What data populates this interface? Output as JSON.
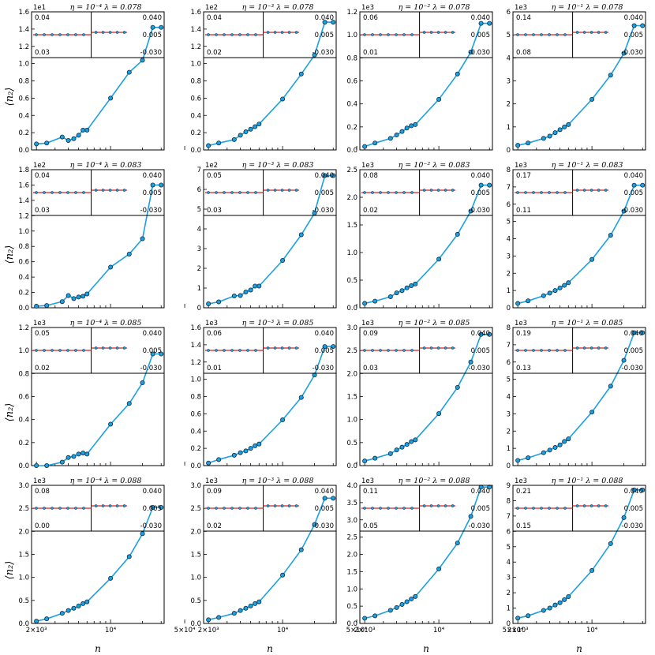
{
  "figure": {
    "ylabel": "⟨n₂⟩",
    "xlabel": "n",
    "x_tick_labels": [
      "2×10³",
      "10⁴",
      "5×10⁴"
    ],
    "x_tick_values": [
      2000,
      10000,
      50000
    ],
    "colors": {
      "series": "#1ba1e2",
      "marker_edge": "#0d2a40",
      "inset_line": "#d62020"
    }
  },
  "chart_data": [
    {
      "type": "line",
      "title": "η = 10⁻⁴ λ = 0.078",
      "multiplier": "1e1",
      "ylim": [
        0,
        1.6
      ],
      "yticks": [
        0.0,
        0.2,
        0.4,
        0.6,
        0.8,
        1.0,
        1.2,
        1.4,
        1.6
      ],
      "ytick_labels": [
        "0.0",
        "0.2",
        "0.4",
        "0.6",
        "0.8",
        "1.0",
        "1.2",
        "1.4",
        "1.6"
      ],
      "x": [
        2000,
        2500,
        3500,
        4000,
        4500,
        5000,
        5500,
        6000,
        10000,
        15000,
        20000,
        25000,
        30000
      ],
      "y": [
        0.07,
        0.08,
        0.15,
        0.11,
        0.13,
        0.17,
        0.23,
        0.23,
        0.6,
        0.9,
        1.04,
        1.42,
        1.42
      ],
      "inset": {
        "left_top": "0.04",
        "left_bottom": "0.03",
        "right_top": "0.040",
        "right_mid": "0.005",
        "right_bottom": "-0.030"
      }
    },
    {
      "type": "line",
      "title": "η = 10⁻³ λ = 0.078",
      "multiplier": "1e2",
      "ylim": [
        0,
        1.6
      ],
      "yticks": [
        0.0,
        0.2,
        0.4,
        0.6,
        0.8,
        1.0,
        1.2,
        1.4,
        1.6
      ],
      "ytick_labels": [
        "0.0",
        "0.2",
        "0.4",
        "0.6",
        "0.8",
        "1.0",
        "1.2",
        "1.4",
        "1.6"
      ],
      "x": [
        2000,
        2500,
        3500,
        4000,
        4500,
        5000,
        5500,
        6000,
        10000,
        15000,
        20000,
        25000,
        30000
      ],
      "y": [
        0.05,
        0.08,
        0.12,
        0.17,
        0.21,
        0.24,
        0.27,
        0.3,
        0.59,
        0.88,
        1.1,
        1.48,
        1.48
      ],
      "inset": {
        "left_top": "0.04",
        "left_bottom": "0.02",
        "right_top": "0.040",
        "right_mid": "0.005",
        "right_bottom": "-0.030"
      }
    },
    {
      "type": "line",
      "title": "η = 10⁻² λ = 0.078",
      "multiplier": "1e3",
      "ylim": [
        0,
        1.2
      ],
      "yticks": [
        0.0,
        0.2,
        0.4,
        0.6,
        0.8,
        1.0,
        1.2
      ],
      "ytick_labels": [
        "0.0",
        "0.2",
        "0.4",
        "0.6",
        "0.8",
        "1.0",
        "1.2"
      ],
      "x": [
        2000,
        2500,
        3500,
        4000,
        4500,
        5000,
        5500,
        6000,
        10000,
        15000,
        20000,
        25000,
        30000
      ],
      "y": [
        0.03,
        0.06,
        0.1,
        0.13,
        0.16,
        0.19,
        0.21,
        0.22,
        0.44,
        0.66,
        0.85,
        1.1,
        1.1
      ],
      "inset": {
        "left_top": "0.06",
        "left_bottom": "0.01",
        "right_top": "0.040",
        "right_mid": "0.005",
        "right_bottom": "-0.030"
      }
    },
    {
      "type": "line",
      "title": "η = 10⁻¹ λ = 0.078",
      "multiplier": "1e3",
      "ylim": [
        0,
        6
      ],
      "yticks": [
        0,
        1,
        2,
        3,
        4,
        5,
        6
      ],
      "ytick_labels": [
        "0",
        "1",
        "2",
        "3",
        "4",
        "5",
        "6"
      ],
      "x": [
        2000,
        2500,
        3500,
        4000,
        4500,
        5000,
        5500,
        6000,
        10000,
        15000,
        20000,
        25000,
        30000
      ],
      "y": [
        0.2,
        0.3,
        0.5,
        0.6,
        0.75,
        0.88,
        1.0,
        1.1,
        2.2,
        3.25,
        4.2,
        5.4,
        5.4
      ],
      "inset": {
        "left_top": "0.14",
        "left_bottom": "0.08",
        "right_top": "0.040",
        "right_mid": "0.005",
        "right_bottom": "-0.030"
      }
    },
    {
      "type": "line",
      "title": "η = 10⁻⁴ λ = 0.083",
      "multiplier": "1e2",
      "ylim": [
        0,
        1.8
      ],
      "yticks": [
        0.0,
        0.2,
        0.4,
        0.6,
        0.8,
        1.0,
        1.2,
        1.4,
        1.6,
        1.8
      ],
      "ytick_labels": [
        "0.0",
        "0.2",
        "0.4",
        "0.6",
        "0.8",
        "1.0",
        "1.2",
        "1.4",
        "1.6",
        "1.8"
      ],
      "x": [
        2000,
        2500,
        3500,
        4000,
        4500,
        5000,
        5500,
        6000,
        10000,
        15000,
        20000,
        25000,
        30000
      ],
      "y": [
        0.02,
        0.03,
        0.08,
        0.16,
        0.12,
        0.14,
        0.15,
        0.18,
        0.53,
        0.7,
        0.9,
        1.6,
        1.6
      ],
      "inset": {
        "left_top": "0.04",
        "left_bottom": "0.03",
        "right_top": "0.040",
        "right_mid": "0.005",
        "right_bottom": "-0.030"
      }
    },
    {
      "type": "line",
      "title": "η = 10⁻³ λ = 0.083",
      "multiplier": "1e2",
      "ylim": [
        0,
        7
      ],
      "yticks": [
        0,
        1,
        2,
        3,
        4,
        5,
        6,
        7
      ],
      "ytick_labels": [
        "0",
        "1",
        "2",
        "3",
        "4",
        "5",
        "6",
        "7"
      ],
      "x": [
        2000,
        2500,
        3500,
        4000,
        4500,
        5000,
        5500,
        6000,
        10000,
        15000,
        20000,
        25000,
        30000
      ],
      "y": [
        0.2,
        0.3,
        0.6,
        0.62,
        0.8,
        0.9,
        1.1,
        1.1,
        2.4,
        3.7,
        4.8,
        6.7,
        6.7
      ],
      "inset": {
        "left_top": "0.05",
        "left_bottom": "0.03",
        "right_top": "0.040",
        "right_mid": "0.005",
        "right_bottom": "-0.030"
      }
    },
    {
      "type": "line",
      "title": "η = 10⁻² λ = 0.083",
      "multiplier": "1e3",
      "ylim": [
        0,
        2.5
      ],
      "yticks": [
        0.0,
        0.5,
        1.0,
        1.5,
        2.0,
        2.5
      ],
      "ytick_labels": [
        "0.0",
        "0.5",
        "1.0",
        "1.5",
        "2.0",
        "2.5"
      ],
      "x": [
        2000,
        2500,
        3500,
        4000,
        4500,
        5000,
        5500,
        6000,
        10000,
        15000,
        20000,
        25000,
        30000
      ],
      "y": [
        0.08,
        0.12,
        0.2,
        0.27,
        0.31,
        0.36,
        0.4,
        0.43,
        0.88,
        1.33,
        1.75,
        2.22,
        2.22
      ],
      "inset": {
        "left_top": "0.08",
        "left_bottom": "0.02",
        "right_top": "0.040",
        "right_mid": "0.005",
        "right_bottom": "-0.030"
      }
    },
    {
      "type": "line",
      "title": "η = 10⁻¹ λ = 0.083",
      "multiplier": "1e3",
      "ylim": [
        0,
        8
      ],
      "yticks": [
        0,
        1,
        2,
        3,
        4,
        5,
        6,
        7,
        8
      ],
      "ytick_labels": [
        "0",
        "1",
        "2",
        "3",
        "4",
        "5",
        "6",
        "7",
        "8"
      ],
      "x": [
        2000,
        2500,
        3500,
        4000,
        4500,
        5000,
        5500,
        6000,
        10000,
        15000,
        20000,
        25000,
        30000
      ],
      "y": [
        0.25,
        0.4,
        0.7,
        0.85,
        1.0,
        1.15,
        1.3,
        1.45,
        2.8,
        4.2,
        5.6,
        7.1,
        7.1
      ],
      "inset": {
        "left_top": "0.17",
        "left_bottom": "0.11",
        "right_top": "0.040",
        "right_mid": "0.005",
        "right_bottom": "-0.030"
      }
    },
    {
      "type": "line",
      "title": "η = 10⁻⁴ λ = 0.085",
      "multiplier": "1e3",
      "ylim": [
        0,
        1.2
      ],
      "yticks": [
        0.0,
        0.2,
        0.4,
        0.6,
        0.8,
        1.0,
        1.2
      ],
      "ytick_labels": [
        "0.0",
        "0.2",
        "0.4",
        "0.6",
        "0.8",
        "1.0",
        "1.2"
      ],
      "x": [
        2000,
        2500,
        3500,
        4000,
        4500,
        5000,
        5500,
        6000,
        10000,
        15000,
        20000,
        25000,
        30000
      ],
      "y": [
        0.0,
        0.0,
        0.03,
        0.07,
        0.08,
        0.1,
        0.11,
        0.1,
        0.36,
        0.54,
        0.72,
        0.97,
        0.97
      ],
      "inset": {
        "left_top": "0.05",
        "left_bottom": "0.02",
        "right_top": "0.040",
        "right_mid": "0.005",
        "right_bottom": "-0.030"
      }
    },
    {
      "type": "line",
      "title": "η = 10⁻³ λ = 0.085",
      "multiplier": "1e3",
      "ylim": [
        0,
        1.6
      ],
      "yticks": [
        0.0,
        0.2,
        0.4,
        0.6,
        0.8,
        1.0,
        1.2,
        1.4,
        1.6
      ],
      "ytick_labels": [
        "0.0",
        "0.2",
        "0.4",
        "0.6",
        "0.8",
        "1.0",
        "1.2",
        "1.4",
        "1.6"
      ],
      "x": [
        2000,
        2500,
        3500,
        4000,
        4500,
        5000,
        5500,
        6000,
        10000,
        15000,
        20000,
        25000,
        30000
      ],
      "y": [
        0.03,
        0.07,
        0.12,
        0.15,
        0.17,
        0.2,
        0.23,
        0.25,
        0.53,
        0.79,
        1.05,
        1.38,
        1.38
      ],
      "inset": {
        "left_top": "0.06",
        "left_bottom": "0.01",
        "right_top": "0.040",
        "right_mid": "0.005",
        "right_bottom": "-0.030"
      }
    },
    {
      "type": "line",
      "title": "η = 10⁻² λ = 0.085",
      "multiplier": "1e3",
      "ylim": [
        0,
        3.0
      ],
      "yticks": [
        0.0,
        0.5,
        1.0,
        1.5,
        2.0,
        2.5,
        3.0
      ],
      "ytick_labels": [
        "0.0",
        "0.5",
        "1.0",
        "1.5",
        "2.0",
        "2.5",
        "3.0"
      ],
      "x": [
        2000,
        2500,
        3500,
        4000,
        4500,
        5000,
        5500,
        6000,
        10000,
        15000,
        20000,
        25000,
        30000
      ],
      "y": [
        0.1,
        0.16,
        0.26,
        0.34,
        0.4,
        0.46,
        0.52,
        0.56,
        1.13,
        1.7,
        2.25,
        2.85,
        2.85
      ],
      "inset": {
        "left_top": "0.09",
        "left_bottom": "0.03",
        "right_top": "0.040",
        "right_mid": "0.005",
        "right_bottom": "-0.030"
      }
    },
    {
      "type": "line",
      "title": "η = 10⁻¹ λ = 0.085",
      "multiplier": "1e3",
      "ylim": [
        0,
        8
      ],
      "yticks": [
        0,
        1,
        2,
        3,
        4,
        5,
        6,
        7,
        8
      ],
      "ytick_labels": [
        "0",
        "1",
        "2",
        "3",
        "4",
        "5",
        "6",
        "7",
        "8"
      ],
      "x": [
        2000,
        2500,
        3500,
        4000,
        4500,
        5000,
        5500,
        6000,
        10000,
        15000,
        20000,
        25000,
        30000
      ],
      "y": [
        0.3,
        0.45,
        0.75,
        0.9,
        1.05,
        1.2,
        1.4,
        1.55,
        3.1,
        4.6,
        6.1,
        7.7,
        7.7
      ],
      "inset": {
        "left_top": "0.19",
        "left_bottom": "0.13",
        "right_top": "0.040",
        "right_mid": "0.005",
        "right_bottom": "-0.030"
      }
    },
    {
      "type": "line",
      "title": "η = 10⁻⁴ λ = 0.088",
      "multiplier": "1e3",
      "ylim": [
        0,
        3.0
      ],
      "yticks": [
        0.0,
        0.5,
        1.0,
        1.5,
        2.0,
        2.5,
        3.0
      ],
      "ytick_labels": [
        "0.0",
        "0.5",
        "1.0",
        "1.5",
        "2.0",
        "2.5",
        "3.0"
      ],
      "x": [
        2000,
        2500,
        3500,
        4000,
        4500,
        5000,
        5500,
        6000,
        10000,
        15000,
        20000,
        25000,
        30000
      ],
      "y": [
        0.05,
        0.1,
        0.22,
        0.28,
        0.33,
        0.38,
        0.43,
        0.47,
        0.98,
        1.45,
        1.95,
        2.52,
        2.52
      ],
      "inset": {
        "left_top": "0.08",
        "left_bottom": "0.00",
        "right_top": "0.040",
        "right_mid": "0.005",
        "right_bottom": "-0.030"
      }
    },
    {
      "type": "line",
      "title": "η = 10⁻³ λ = 0.088",
      "multiplier": "1e3",
      "ylim": [
        0,
        3.0
      ],
      "yticks": [
        0.0,
        0.5,
        1.0,
        1.5,
        2.0,
        2.5,
        3.0
      ],
      "ytick_labels": [
        "0.0",
        "0.5",
        "1.0",
        "1.5",
        "2.0",
        "2.5",
        "3.0"
      ],
      "x": [
        2000,
        2500,
        3500,
        4000,
        4500,
        5000,
        5500,
        6000,
        10000,
        15000,
        20000,
        25000,
        30000
      ],
      "y": [
        0.08,
        0.13,
        0.22,
        0.28,
        0.33,
        0.38,
        0.43,
        0.47,
        1.05,
        1.6,
        2.15,
        2.72,
        2.72
      ],
      "inset": {
        "left_top": "0.09",
        "left_bottom": "0.02",
        "right_top": "0.040",
        "right_mid": "0.005",
        "right_bottom": "-0.030"
      }
    },
    {
      "type": "line",
      "title": "η = 10⁻² λ = 0.088",
      "multiplier": "1e3",
      "ylim": [
        0,
        4.0
      ],
      "yticks": [
        0.0,
        0.5,
        1.0,
        1.5,
        2.0,
        2.5,
        3.0,
        3.5,
        4.0
      ],
      "ytick_labels": [
        "0.0",
        "0.5",
        "1.0",
        "1.5",
        "2.0",
        "2.5",
        "3.0",
        "3.5",
        "4.0"
      ],
      "x": [
        2000,
        2500,
        3500,
        4000,
        4500,
        5000,
        5500,
        6000,
        10000,
        15000,
        20000,
        25000,
        30000
      ],
      "y": [
        0.15,
        0.22,
        0.38,
        0.46,
        0.55,
        0.63,
        0.71,
        0.78,
        1.58,
        2.33,
        3.1,
        3.95,
        3.95
      ],
      "inset": {
        "left_top": "0.11",
        "left_bottom": "0.05",
        "right_top": "0.040",
        "right_mid": "0.005",
        "right_bottom": "-0.030"
      }
    },
    {
      "type": "line",
      "title": "η = 10⁻¹ λ = 0.088",
      "multiplier": "1e3",
      "ylim": [
        0,
        9
      ],
      "yticks": [
        0,
        1,
        2,
        3,
        4,
        5,
        6,
        7,
        8,
        9
      ],
      "ytick_labels": [
        "0",
        "1",
        "2",
        "3",
        "4",
        "5",
        "6",
        "7",
        "8",
        "9"
      ],
      "x": [
        2000,
        2500,
        3500,
        4000,
        4500,
        5000,
        5500,
        6000,
        10000,
        15000,
        20000,
        25000,
        30000
      ],
      "y": [
        0.35,
        0.5,
        0.85,
        1.0,
        1.2,
        1.35,
        1.55,
        1.75,
        3.45,
        5.2,
        6.9,
        8.7,
        8.7
      ],
      "inset": {
        "left_top": "0.21",
        "left_bottom": "0.15",
        "right_top": "0.040",
        "right_mid": "0.005",
        "right_bottom": "-0.030"
      }
    }
  ]
}
